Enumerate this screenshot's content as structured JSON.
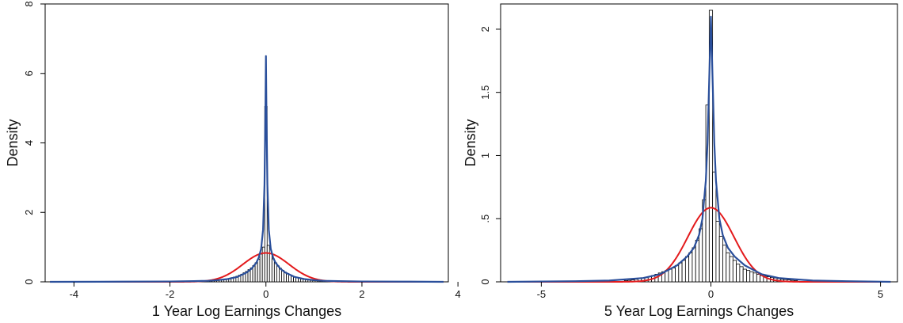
{
  "chart_data": [
    {
      "type": "histogram",
      "xlabel": "1 Year Log Earnings Changes",
      "ylabel": "Density",
      "xlim": [
        -4.6,
        3.8
      ],
      "ylim": [
        0,
        8
      ],
      "xticks": [
        -4,
        -2,
        0,
        2,
        4
      ],
      "yticks": [
        0,
        2,
        4,
        6,
        8
      ],
      "xtick_labels": [
        "-4",
        "-2",
        "0",
        "2",
        "4"
      ],
      "ytick_labels": [
        "0",
        "2",
        "4",
        "6",
        "8"
      ],
      "bin_width": 0.05,
      "bins_x": [
        -1.2,
        -1.15,
        -1.1,
        -1.05,
        -1.0,
        -0.95,
        -0.9,
        -0.85,
        -0.8,
        -0.75,
        -0.7,
        -0.65,
        -0.6,
        -0.55,
        -0.5,
        -0.45,
        -0.4,
        -0.35,
        -0.3,
        -0.25,
        -0.2,
        -0.15,
        -0.1,
        -0.05,
        0.0,
        0.05,
        0.1,
        0.15,
        0.2,
        0.25,
        0.3,
        0.35,
        0.4,
        0.45,
        0.5,
        0.55,
        0.6,
        0.65,
        0.7,
        0.75,
        0.8,
        0.85,
        0.9,
        0.95,
        1.0,
        1.05,
        1.1,
        1.15,
        1.2
      ],
      "bin_values": [
        0.02,
        0.02,
        0.03,
        0.03,
        0.04,
        0.05,
        0.06,
        0.07,
        0.08,
        0.1,
        0.12,
        0.14,
        0.16,
        0.19,
        0.22,
        0.26,
        0.3,
        0.35,
        0.4,
        0.47,
        0.55,
        0.65,
        0.8,
        1.0,
        5.05,
        1.05,
        0.82,
        0.66,
        0.55,
        0.46,
        0.39,
        0.33,
        0.28,
        0.24,
        0.2,
        0.17,
        0.14,
        0.12,
        0.1,
        0.08,
        0.07,
        0.06,
        0.05,
        0.04,
        0.035,
        0.03,
        0.025,
        0.02,
        0.02
      ],
      "kernel_density": {
        "x": [
          -4.5,
          -3.0,
          -2.0,
          -1.5,
          -1.2,
          -1.0,
          -0.8,
          -0.6,
          -0.4,
          -0.3,
          -0.2,
          -0.15,
          -0.1,
          -0.06,
          -0.03,
          -0.01,
          0.0,
          0.01,
          0.03,
          0.06,
          0.1,
          0.15,
          0.2,
          0.3,
          0.4,
          0.6,
          0.8,
          1.0,
          1.2,
          1.5,
          2.0,
          3.0,
          3.7
        ],
        "y": [
          0.0,
          0.005,
          0.01,
          0.02,
          0.03,
          0.05,
          0.08,
          0.14,
          0.27,
          0.38,
          0.55,
          0.7,
          0.95,
          1.5,
          2.8,
          5.0,
          6.5,
          5.0,
          2.8,
          1.5,
          0.95,
          0.7,
          0.55,
          0.38,
          0.27,
          0.14,
          0.08,
          0.05,
          0.03,
          0.02,
          0.01,
          0.005,
          0.0
        ]
      },
      "normal_density": {
        "mean": 0.0,
        "sd": 0.48,
        "x_range": [
          -4.5,
          3.7
        ]
      }
    },
    {
      "type": "histogram",
      "xlabel": "5 Year Log Earnings Changes",
      "ylabel": "Density",
      "xlim": [
        -6.2,
        5.5
      ],
      "ylim": [
        0,
        2.2
      ],
      "xticks": [
        -5,
        0,
        5
      ],
      "yticks": [
        0,
        0.5,
        1,
        1.5,
        2
      ],
      "xtick_labels": [
        "-5",
        "0",
        "5"
      ],
      "ytick_labels": [
        "0",
        ".5",
        "1",
        "1.5",
        "2"
      ],
      "bin_width": 0.1,
      "bins_x": [
        -2.5,
        -2.4,
        -2.3,
        -2.2,
        -2.1,
        -2.0,
        -1.9,
        -1.8,
        -1.7,
        -1.6,
        -1.5,
        -1.4,
        -1.3,
        -1.2,
        -1.1,
        -1.0,
        -0.9,
        -0.8,
        -0.7,
        -0.6,
        -0.5,
        -0.4,
        -0.3,
        -0.2,
        -0.1,
        0.0,
        0.1,
        0.2,
        0.3,
        0.4,
        0.5,
        0.6,
        0.7,
        0.8,
        0.9,
        1.0,
        1.1,
        1.2,
        1.3,
        1.4,
        1.5,
        1.6,
        1.7,
        1.8,
        1.9,
        2.0,
        2.1,
        2.2,
        2.3,
        2.4,
        2.5
      ],
      "bin_values": [
        0.01,
        0.012,
        0.015,
        0.02,
        0.025,
        0.03,
        0.035,
        0.04,
        0.05,
        0.06,
        0.07,
        0.08,
        0.09,
        0.1,
        0.11,
        0.13,
        0.15,
        0.17,
        0.2,
        0.23,
        0.27,
        0.33,
        0.42,
        0.65,
        1.4,
        2.15,
        0.87,
        0.48,
        0.36,
        0.29,
        0.23,
        0.2,
        0.17,
        0.14,
        0.12,
        0.1,
        0.09,
        0.08,
        0.07,
        0.06,
        0.05,
        0.045,
        0.04,
        0.035,
        0.03,
        0.025,
        0.02,
        0.018,
        0.015,
        0.012,
        0.01
      ],
      "kernel_density": {
        "x": [
          -6.0,
          -4.0,
          -3.0,
          -2.0,
          -1.5,
          -1.0,
          -0.7,
          -0.5,
          -0.35,
          -0.25,
          -0.15,
          -0.1,
          -0.05,
          0.0,
          0.05,
          0.1,
          0.15,
          0.25,
          0.35,
          0.5,
          0.7,
          1.0,
          1.5,
          2.0,
          3.0,
          4.0,
          5.3
        ],
        "y": [
          0.0,
          0.005,
          0.01,
          0.03,
          0.06,
          0.13,
          0.2,
          0.27,
          0.37,
          0.5,
          0.8,
          1.1,
          1.6,
          2.1,
          1.6,
          1.1,
          0.8,
          0.5,
          0.37,
          0.27,
          0.2,
          0.13,
          0.06,
          0.03,
          0.01,
          0.005,
          0.0
        ]
      },
      "normal_density": {
        "mean": 0.0,
        "sd": 0.68,
        "x_range": [
          -6.0,
          5.3
        ]
      }
    }
  ],
  "colors": {
    "histogram_edge": "#000000",
    "kernel_line": "#2a4f9b",
    "normal_line": "#e31a1c",
    "axis": "#000000"
  }
}
